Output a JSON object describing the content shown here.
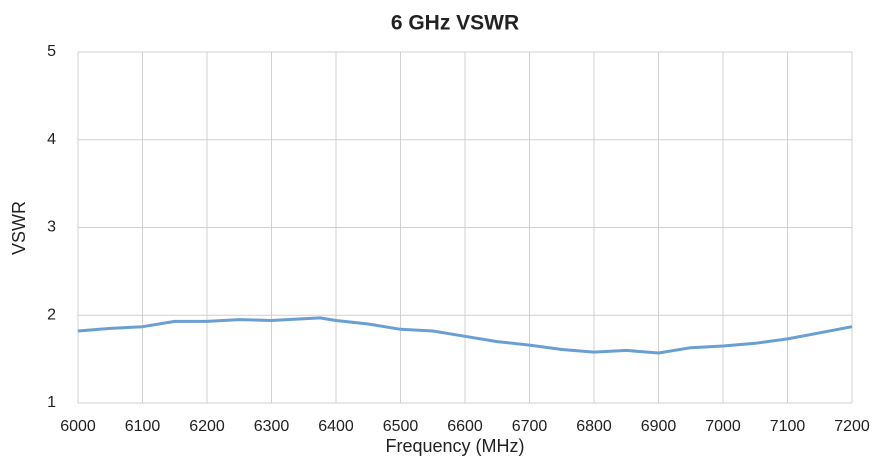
{
  "chart_data": {
    "type": "line",
    "title": "6 GHz VSWR",
    "x_label": "Frequency (MHz)",
    "y_label": "VSWR",
    "x": [
      6000,
      6050,
      6100,
      6150,
      6200,
      6250,
      6300,
      6350,
      6375,
      6400,
      6450,
      6500,
      6550,
      6600,
      6650,
      6700,
      6750,
      6800,
      6850,
      6900,
      6950,
      7000,
      7050,
      7100,
      7150,
      7200
    ],
    "series": [
      {
        "name": "VSWR",
        "color": "#6a9fd4",
        "values": [
          1.82,
          1.85,
          1.87,
          1.93,
          1.93,
          1.95,
          1.94,
          1.96,
          1.97,
          1.94,
          1.9,
          1.84,
          1.82,
          1.76,
          1.7,
          1.66,
          1.61,
          1.58,
          1.6,
          1.57,
          1.63,
          1.65,
          1.68,
          1.73,
          1.8,
          1.87
        ]
      }
    ],
    "xlim": [
      6000,
      7200
    ],
    "xticks": [
      6000,
      6100,
      6200,
      6300,
      6400,
      6500,
      6600,
      6700,
      6800,
      6900,
      7000,
      7100,
      7200
    ],
    "ylim": [
      1,
      5
    ],
    "yticks": [
      1,
      2,
      3,
      4,
      5
    ],
    "grid": true
  }
}
